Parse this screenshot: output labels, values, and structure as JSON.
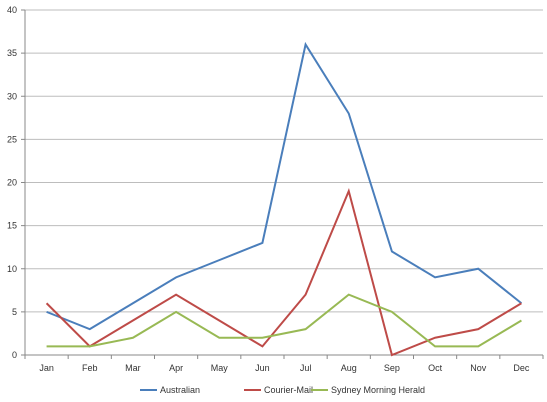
{
  "chart_data": {
    "type": "line",
    "title": "",
    "xlabel": "",
    "ylabel": "",
    "categories": [
      "Jan",
      "Feb",
      "Mar",
      "Apr",
      "May",
      "Jun",
      "Jul",
      "Aug",
      "Sep",
      "Oct",
      "Nov",
      "Dec"
    ],
    "ylim": [
      0,
      40
    ],
    "yticks": [
      0,
      5,
      10,
      15,
      20,
      25,
      30,
      35,
      40
    ],
    "ytick_labels": [
      "0",
      "5",
      "10",
      "15",
      "20",
      "25",
      "30",
      "35",
      "40"
    ],
    "grid": "horizontal",
    "legend_position": "bottom",
    "series": [
      {
        "name": "Australian",
        "color": "#4a7ebb",
        "values": [
          5,
          3,
          6,
          9,
          11,
          13,
          36,
          28,
          12,
          9,
          10,
          6
        ]
      },
      {
        "name": "Courier-Mail",
        "color": "#be4b48",
        "values": [
          6,
          1,
          4,
          7,
          4,
          1,
          7,
          19,
          0,
          2,
          3,
          6
        ]
      },
      {
        "name": "Sydney Morning Herald",
        "color": "#98b954",
        "values": [
          1,
          1,
          2,
          5,
          2,
          2,
          3,
          7,
          5,
          1,
          1,
          4
        ]
      }
    ]
  }
}
